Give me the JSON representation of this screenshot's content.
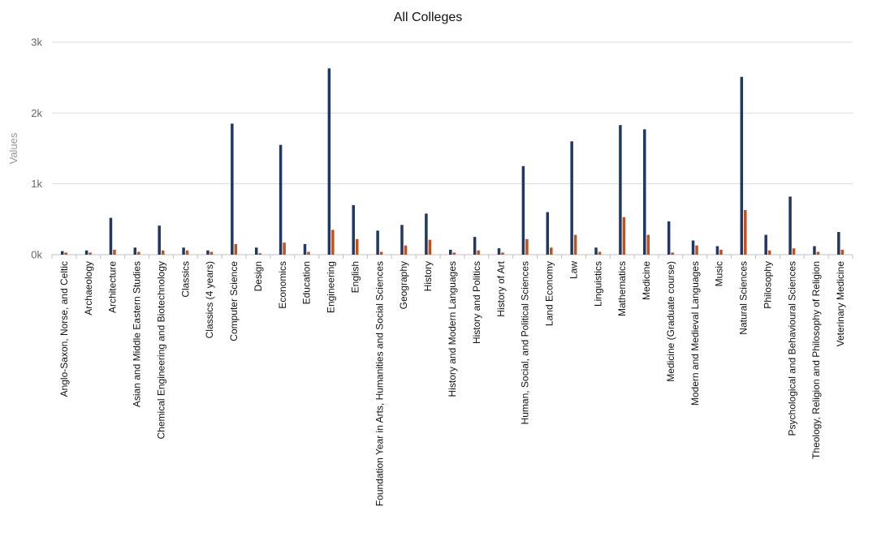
{
  "chart_data": {
    "type": "bar",
    "title": "All Colleges",
    "xlabel": "",
    "ylabel": "Values",
    "ylim": [
      0,
      3000
    ],
    "yticks": [
      0,
      1000,
      2000,
      3000
    ],
    "ytick_labels": [
      "0k",
      "1k",
      "2k",
      "3k"
    ],
    "grid": true,
    "colors": [
      "#1f3864",
      "#c5501a"
    ],
    "categories": [
      "Anglo-Saxon, Norse, and Celtic",
      "Archaeology",
      "Architecture",
      "Asian and Middle Eastern Studies",
      "Chemical Engineering and Biotechnology",
      "Classics",
      "Classics (4 years)",
      "Computer Science",
      "Design",
      "Economics",
      "Education",
      "Engineering",
      "English",
      "Foundation Year in Arts, Humanities and Social Sciences",
      "Geography",
      "History",
      "History and Modern Languages",
      "History and Politics",
      "History of Art",
      "Human, Social, and Political Sciences",
      "Land Economy",
      "Law",
      "Linguistics",
      "Mathematics",
      "Medicine",
      "Medicine (Graduate course)",
      "Modern and Medieval Languages",
      "Music",
      "Natural Sciences",
      "Philosophy",
      "Psychological and Behavioural Sciences",
      "Theology, Religion and Philosophy of Religion",
      "Veterinary Medicine"
    ],
    "series": [
      {
        "values": [
          50,
          60,
          520,
          100,
          410,
          100,
          60,
          1850,
          100,
          1550,
          150,
          2630,
          700,
          340,
          420,
          580,
          70,
          250,
          90,
          1250,
          600,
          1600,
          100,
          1830,
          1770,
          470,
          200,
          120,
          2510,
          280,
          820,
          120,
          320
        ]
      },
      {
        "values": [
          30,
          30,
          70,
          40,
          60,
          60,
          40,
          150,
          20,
          170,
          40,
          350,
          220,
          40,
          130,
          210,
          30,
          60,
          30,
          220,
          100,
          280,
          40,
          530,
          280,
          30,
          130,
          70,
          630,
          60,
          90,
          40,
          70
        ]
      }
    ]
  }
}
